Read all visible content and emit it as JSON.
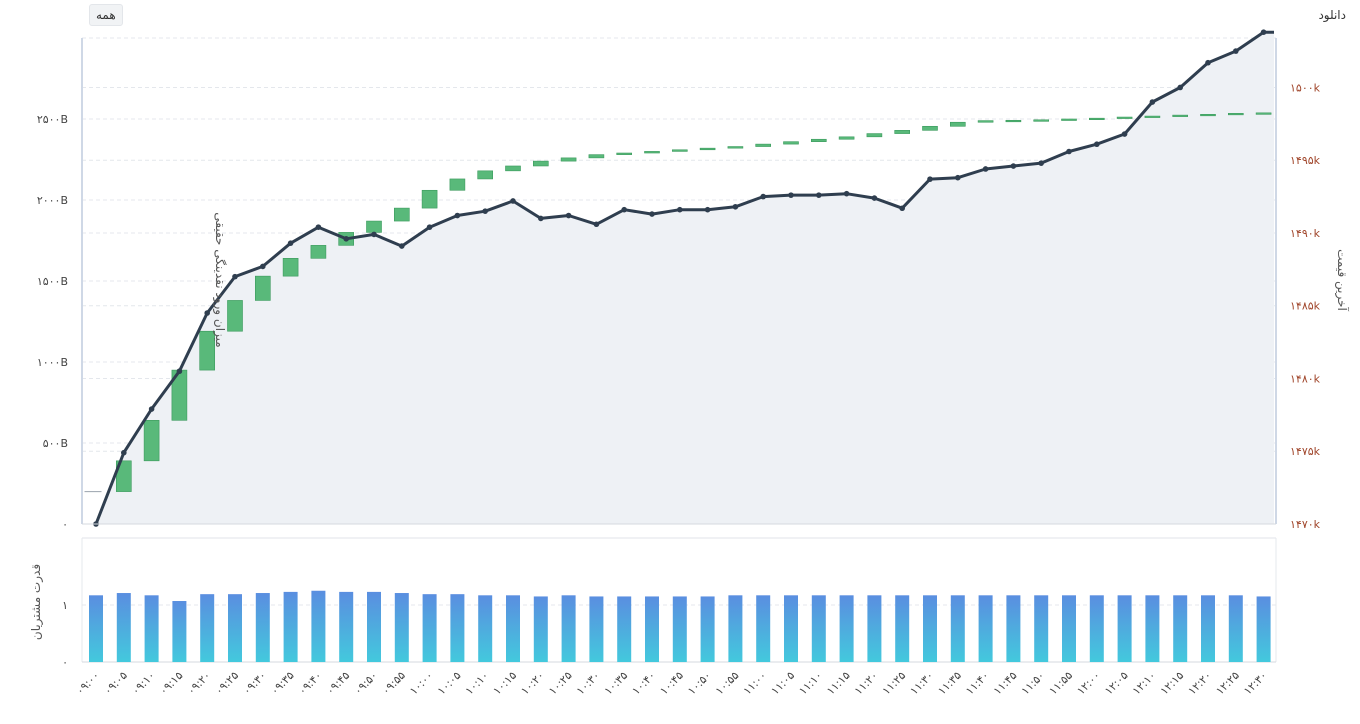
{
  "toolbar": {
    "range_all_label": "همه",
    "download_label": "دانلود"
  },
  "chart_data": {
    "type": "waterfall+line+bar",
    "x": [
      "۰۹:۰۰",
      "۰۹:۰۵",
      "۰۹:۱۰",
      "۰۹:۱۵",
      "۰۹:۲۰",
      "۰۹:۲۵",
      "۰۹:۳۰",
      "۰۹:۳۵",
      "۰۹:۴۰",
      "۰۹:۴۵",
      "۰۹:۵۰",
      "۰۹:۵۵",
      "۱۰:۰۰",
      "۱۰:۰۵",
      "۱۰:۱۰",
      "۱۰:۱۵",
      "۱۰:۲۰",
      "۱۰:۲۵",
      "۱۰:۳۰",
      "۱۰:۳۵",
      "۱۰:۴۰",
      "۱۰:۴۵",
      "۱۰:۵۰",
      "۱۰:۵۵",
      "۱۱:۰۰",
      "۱۱:۰۵",
      "۱۱:۱۰",
      "۱۱:۱۵",
      "۱۱:۲۰",
      "۱۱:۲۵",
      "۱۱:۳۰",
      "۱۱:۳۵",
      "۱۱:۴۰",
      "۱۱:۴۵",
      "۱۱:۵۰",
      "۱۱:۵۵",
      "۱۲:۰۰",
      "۱۲:۰۵",
      "۱۲:۱۰",
      "۱۲:۱۵",
      "۱۲:۲۰",
      "۱۲:۲۵",
      "۱۲:۳۰"
    ],
    "left_axis": {
      "title": "میزان ورود نقدینگی حقیقی",
      "ticks": [
        0,
        500,
        1000,
        1500,
        2000,
        2500
      ],
      "tick_labels": [
        "۰",
        "۵۰۰B",
        "۱۰۰۰B",
        "۱۵۰۰B",
        "۲۰۰۰B",
        "۲۵۰۰B"
      ],
      "ylim": [
        0,
        3000
      ]
    },
    "right_axis": {
      "title": "آخرین قیمت",
      "ticks": [
        1470000,
        1475000,
        1480000,
        1485000,
        1490000,
        1495000,
        1500000
      ],
      "tick_labels": [
        "۱۴۷۰k",
        "۱۴۷۵k",
        "۱۴۸۰k",
        "۱۴۸۵k",
        "۱۴۹۰k",
        "۱۴۹۵k",
        "۱۵۰۰k"
      ],
      "ylim": [
        1470000,
        1503400
      ]
    },
    "lower_axis": {
      "title": "قدرت مشتریان",
      "ticks": [
        0,
        1
      ],
      "tick_labels": [
        "۰",
        "۱"
      ],
      "ylim": [
        0,
        2
      ]
    },
    "cumulative_inflow": [
      200,
      390,
      640,
      950,
      1190,
      1380,
      1530,
      1640,
      1720,
      1800,
      1870,
      1950,
      2060,
      2130,
      2180,
      2210,
      2240,
      2260,
      2280,
      2290,
      2300,
      2310,
      2320,
      2330,
      2345,
      2360,
      2375,
      2390,
      2410,
      2430,
      2455,
      2480,
      2490,
      2492,
      2495,
      2500,
      2505,
      2512,
      2518,
      2524,
      2529,
      2535,
      2538
    ],
    "last_price": [
      1470000,
      1474900,
      1477900,
      1480500,
      1484500,
      1487000,
      1487700,
      1489300,
      1490400,
      1489600,
      1489900,
      1489100,
      1490400,
      1491200,
      1491500,
      1492200,
      1491000,
      1491200,
      1490600,
      1491600,
      1491300,
      1491600,
      1491600,
      1491800,
      1492500,
      1492600,
      1492600,
      1492700,
      1492400,
      1491700,
      1493700,
      1493800,
      1494400,
      1494600,
      1494800,
      1495600,
      1496100,
      1496800,
      1499000,
      1500000,
      1501700,
      1502500,
      1503800
    ],
    "buyer_power": [
      1.17,
      1.21,
      1.17,
      1.07,
      1.19,
      1.19,
      1.21,
      1.23,
      1.25,
      1.23,
      1.23,
      1.21,
      1.19,
      1.19,
      1.17,
      1.17,
      1.15,
      1.17,
      1.15,
      1.15,
      1.15,
      1.15,
      1.15,
      1.17,
      1.17,
      1.17,
      1.17,
      1.17,
      1.17,
      1.17,
      1.17,
      1.17,
      1.17,
      1.17,
      1.17,
      1.17,
      1.17,
      1.17,
      1.17,
      1.17,
      1.17,
      1.17,
      1.15
    ],
    "colors": {
      "up_bar": "#59b97a",
      "up_bar_edge": "#3a9a5c",
      "line": "#2f3e4f",
      "area": "#eef1f5",
      "right_tick": "#a0452a",
      "power_top": "#5a8ee0",
      "power_bottom": "#43c9dd",
      "grid": "#e4e7ec",
      "plot_border": "#cfd8e6"
    },
    "grid": true,
    "legend": "none"
  }
}
